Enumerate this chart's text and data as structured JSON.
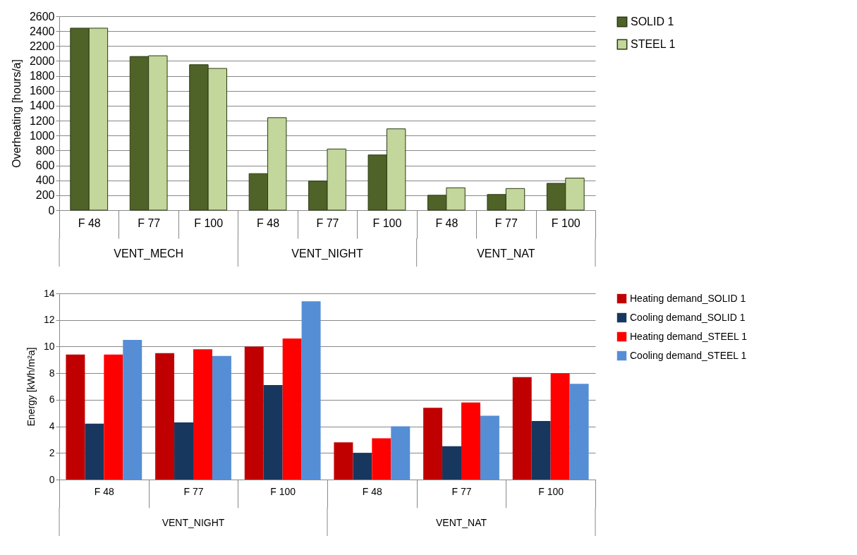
{
  "chart_data": [
    {
      "type": "bar",
      "ylabel": "Overheating [hours/a]",
      "categories": [
        "F 48",
        "F 77",
        "F 100",
        "F 48",
        "F 77",
        "F 100",
        "F 48",
        "F 77",
        "F 100"
      ],
      "series": [
        {
          "name": "SOLID 1",
          "color": "#4f6228",
          "values": [
            2440,
            2060,
            1950,
            490,
            390,
            740,
            200,
            210,
            360
          ]
        },
        {
          "name": "STEEL 1",
          "color": "#c3d69b",
          "values": [
            2440,
            2070,
            1900,
            1240,
            820,
            1090,
            300,
            290,
            430
          ]
        }
      ],
      "ylim": [
        0,
        2600
      ],
      "yticks": [
        0,
        200,
        400,
        600,
        800,
        1000,
        1200,
        1400,
        1600,
        1800,
        2000,
        2200,
        2400,
        2600
      ],
      "grid": "y",
      "legend": "right",
      "annotations": [
        "VENT_MECH",
        "VENT_NIGHT",
        "VENT_NAT"
      ]
    },
    {
      "type": "bar",
      "ylabel": "Energy [kWh/m²a]",
      "categories": [
        "F 48",
        "F 77",
        "F 100",
        "F 48",
        "F 77",
        "F 100"
      ],
      "series": [
        {
          "name": "Heating demand_SOLID 1",
          "color": "#c00000",
          "values": [
            9.4,
            9.5,
            10.0,
            2.8,
            5.4,
            7.7
          ]
        },
        {
          "name": "Cooling demand_SOLID 1",
          "color": "#17375e",
          "values": [
            4.2,
            4.3,
            7.1,
            2.0,
            2.5,
            4.4
          ]
        },
        {
          "name": "Heating demand_STEEL 1",
          "color": "#ff0000",
          "values": [
            9.4,
            9.8,
            10.6,
            3.1,
            5.8,
            8.0
          ]
        },
        {
          "name": "Cooling demand_STEEL 1",
          "color": "#558ed5",
          "values": [
            10.5,
            9.3,
            13.4,
            4.0,
            4.8,
            7.2
          ]
        }
      ],
      "ylim": [
        0,
        14
      ],
      "yticks": [
        0,
        2,
        4,
        6,
        8,
        10,
        12,
        14
      ],
      "grid": "y",
      "legend": "right",
      "annotations": [
        "VENT_NIGHT",
        "VENT_NAT"
      ]
    }
  ]
}
